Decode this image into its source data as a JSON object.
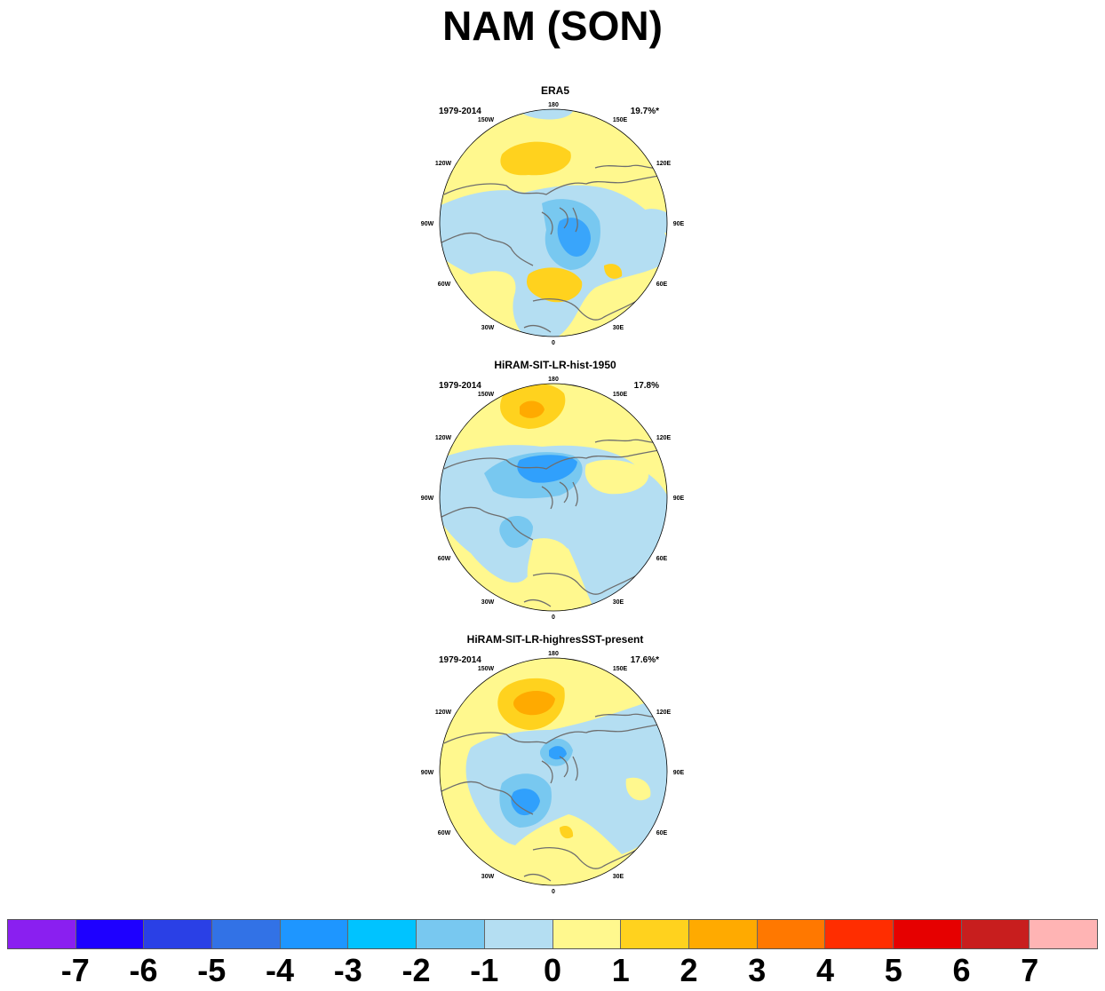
{
  "title": "NAM (SON)",
  "longitude_labels": [
    "180",
    "150E",
    "120E",
    "90E",
    "60E",
    "30E",
    "0",
    "30W",
    "60W",
    "90W",
    "120W",
    "150W"
  ],
  "panels": [
    {
      "title": "ERA5",
      "period": "1979-2014",
      "variance_explained": "19.7%*"
    },
    {
      "title": "HiRAM-SIT-LR-hist-1950",
      "period": "1979-2014",
      "variance_explained": "17.8%"
    },
    {
      "title": "HiRAM-SIT-LR-highresSST-present",
      "period": "1979-2014",
      "variance_explained": "17.6%*"
    }
  ],
  "colorbar": {
    "labels": [
      "-7",
      "-6",
      "-5",
      "-4",
      "-3",
      "-2",
      "-1",
      "0",
      "1",
      "2",
      "3",
      "4",
      "5",
      "6",
      "7"
    ],
    "colors": [
      "#8a1ff0",
      "#1e00ff",
      "#2a40e6",
      "#3272e6",
      "#1e96ff",
      "#00c3ff",
      "#78c8f0",
      "#b4def2",
      "#fff88e",
      "#ffd21e",
      "#ffaa00",
      "#ff7800",
      "#ff2d00",
      "#e60000",
      "#c81e1e",
      "#ffb4b4"
    ]
  },
  "colors": {
    "land_outline": "#6e6e6e",
    "circle_outline": "#000000"
  }
}
